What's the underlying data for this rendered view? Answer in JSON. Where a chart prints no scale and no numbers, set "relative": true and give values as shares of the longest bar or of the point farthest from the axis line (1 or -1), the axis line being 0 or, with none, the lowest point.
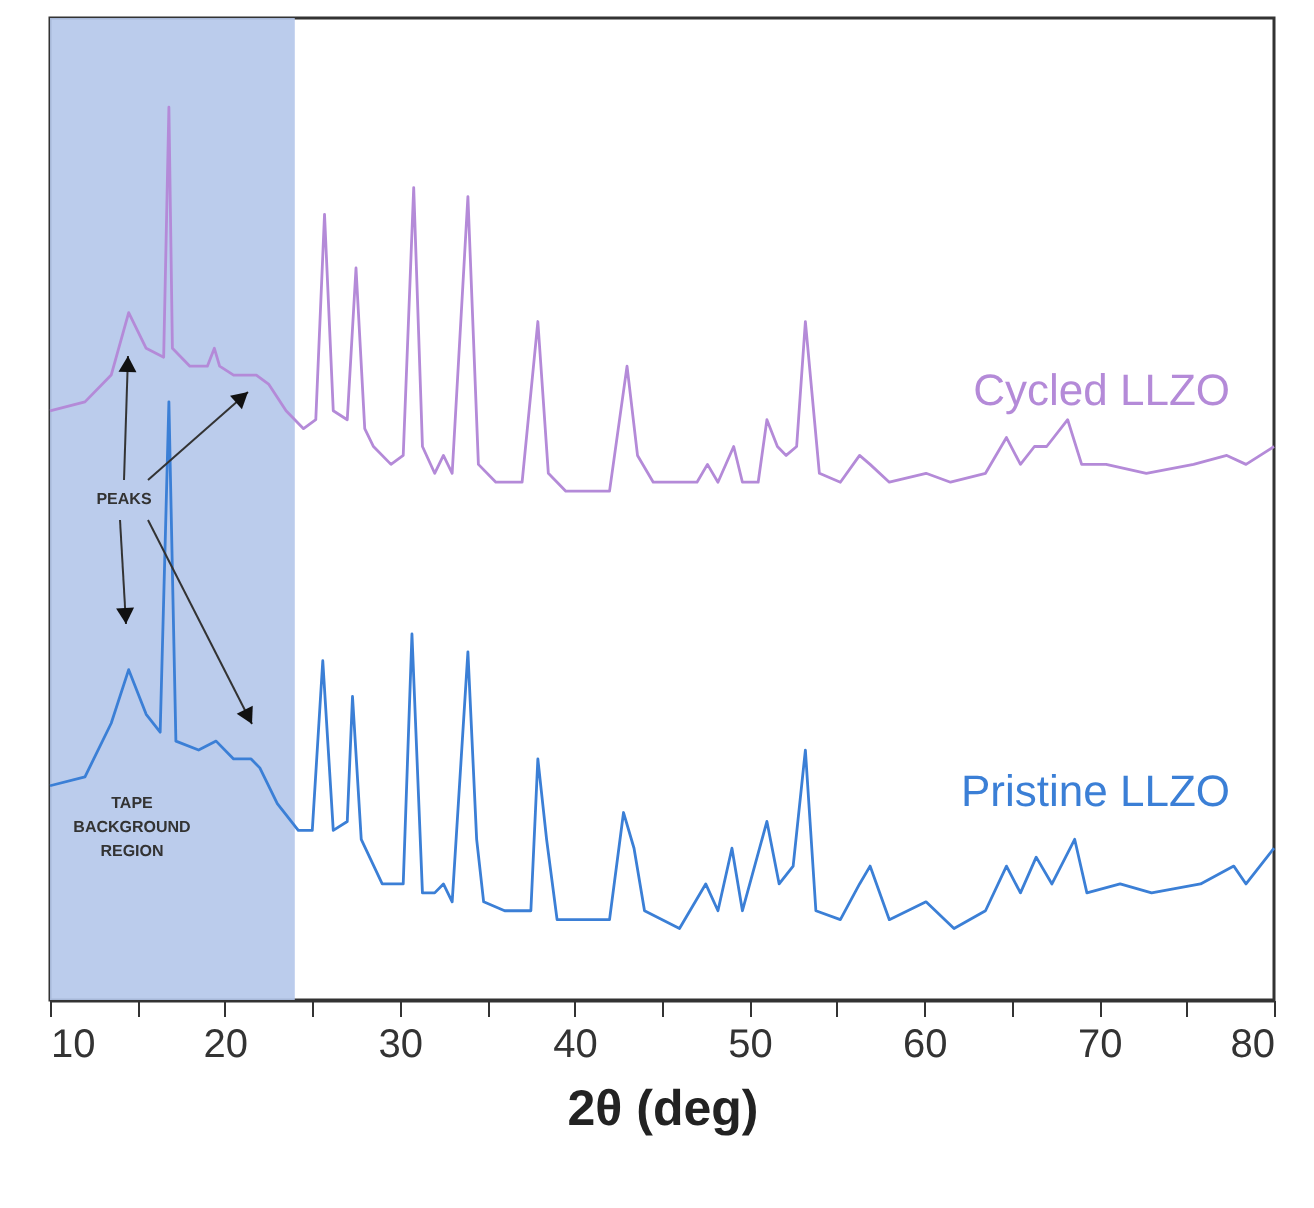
{
  "chart_data": {
    "type": "line",
    "relative": true,
    "xlabel": "2θ (deg)",
    "xlim": [
      10,
      80
    ],
    "xticks": [
      10,
      {
        "value": 15,
        "label": null
      },
      20,
      {
        "value": 25,
        "label": null
      },
      30,
      {
        "value": 35,
        "label": null
      },
      40,
      {
        "value": 45,
        "label": null
      },
      50,
      {
        "value": 55,
        "label": null
      },
      60,
      {
        "value": 65,
        "label": null
      },
      70,
      {
        "value": 75,
        "label": null
      },
      80
    ],
    "grid": false,
    "marker": "none",
    "line_style": "solid",
    "bands": [
      {
        "axis": "x",
        "from": 10,
        "to": 24,
        "label": "TAPE BACKGROUND REGION",
        "color": "#b4c6ea"
      }
    ],
    "annotations": [
      "PEAKS"
    ],
    "series": [
      {
        "name": "Cycled LLZO",
        "color": "#b48ad8",
        "x": [
          10,
          12,
          13.5,
          14.5,
          15.5,
          16.5,
          16.8,
          17,
          18,
          19,
          19.4,
          19.7,
          20.5,
          21.8,
          22.5,
          23.5,
          24.5,
          25.2,
          25.7,
          26.2,
          27,
          27.5,
          28,
          28.5,
          29.5,
          30.2,
          30.8,
          31.3,
          32,
          32.5,
          33,
          33.9,
          34.5,
          35.5,
          37,
          37.9,
          38.5,
          39.5,
          42,
          43,
          43.6,
          44.5,
          45.2,
          47,
          47.6,
          48.2,
          49.1,
          49.6,
          50.5,
          51,
          51.6,
          52.1,
          52.7,
          53.2,
          54,
          55.2,
          56.3,
          56.9,
          58,
          60.1,
          61.5,
          63.5,
          64.7,
          65.5,
          66.3,
          67,
          68.2,
          69,
          70.4,
          72.7,
          75.4,
          77.3,
          78.4,
          80
        ],
        "values": [
          0.66,
          0.67,
          0.7,
          0.77,
          0.73,
          0.72,
          1,
          0.73,
          0.71,
          0.71,
          0.73,
          0.71,
          0.7,
          0.7,
          0.69,
          0.66,
          0.64,
          0.65,
          0.88,
          0.66,
          0.65,
          0.82,
          0.64,
          0.62,
          0.6,
          0.61,
          0.91,
          0.62,
          0.59,
          0.61,
          0.59,
          0.9,
          0.6,
          0.58,
          0.58,
          0.76,
          0.59,
          0.57,
          0.57,
          0.71,
          0.61,
          0.58,
          0.58,
          0.58,
          0.6,
          0.58,
          0.62,
          0.58,
          0.58,
          0.65,
          0.62,
          0.61,
          0.62,
          0.76,
          0.59,
          0.58,
          0.61,
          0.6,
          0.58,
          0.59,
          0.58,
          0.59,
          0.63,
          0.6,
          0.62,
          0.62,
          0.65,
          0.6,
          0.6,
          0.59,
          0.6,
          0.61,
          0.6,
          0.62
        ]
      },
      {
        "name": "Pristine LLZO",
        "color": "#3b7fd6",
        "x": [
          10,
          12,
          13.5,
          14.5,
          15.5,
          16.3,
          16.8,
          17.2,
          18.5,
          19.5,
          20.5,
          21.5,
          22,
          23,
          24.2,
          25,
          25.6,
          26.2,
          27,
          27.3,
          27.8,
          29,
          30.2,
          30.7,
          31.3,
          32,
          32.5,
          33,
          33.9,
          34.4,
          34.8,
          36,
          37.5,
          37.9,
          38.4,
          39,
          42,
          42.8,
          43.4,
          44,
          46,
          47.5,
          48.2,
          49,
          49.6,
          51,
          51.7,
          52.5,
          53.2,
          53.8,
          55.2,
          56.3,
          56.9,
          58,
          60.1,
          61.7,
          63.5,
          64.7,
          65.5,
          66.4,
          67.3,
          68.6,
          69.3,
          71.2,
          73,
          75.8,
          77.7,
          78.4,
          80
        ],
        "values": [
          0.24,
          0.25,
          0.31,
          0.37,
          0.32,
          0.3,
          0.67,
          0.29,
          0.28,
          0.29,
          0.27,
          0.27,
          0.26,
          0.22,
          0.19,
          0.19,
          0.38,
          0.19,
          0.2,
          0.34,
          0.18,
          0.13,
          0.13,
          0.41,
          0.12,
          0.12,
          0.13,
          0.11,
          0.39,
          0.18,
          0.11,
          0.1,
          0.1,
          0.27,
          0.18,
          0.09,
          0.09,
          0.21,
          0.17,
          0.1,
          0.08,
          0.13,
          0.1,
          0.17,
          0.1,
          0.2,
          0.13,
          0.15,
          0.28,
          0.1,
          0.09,
          0.13,
          0.15,
          0.09,
          0.11,
          0.08,
          0.1,
          0.15,
          0.12,
          0.16,
          0.13,
          0.18,
          0.12,
          0.13,
          0.12,
          0.13,
          0.15,
          0.13,
          0.17
        ]
      }
    ]
  }
}
